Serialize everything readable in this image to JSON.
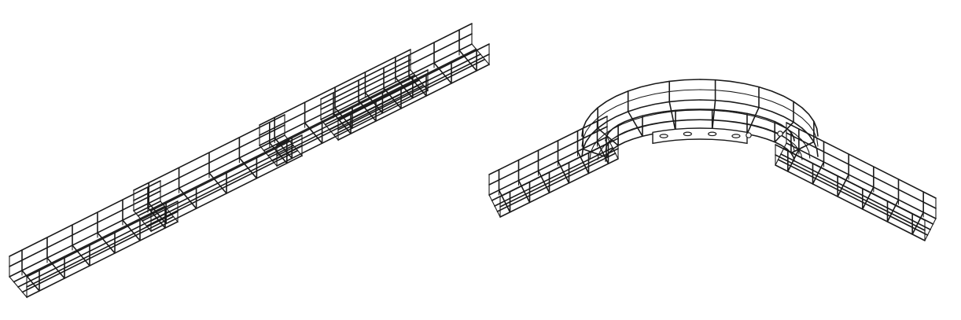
{
  "figures": [
    {
      "name": "straight-mesh-tray-run",
      "colors": {
        "stroke": "#1a1a1a",
        "background": "#ffffff"
      }
    },
    {
      "name": "wire-mesh-tray-bend-with-coupler",
      "colors": {
        "stroke": "#1a1a1a",
        "background": "#ffffff"
      }
    }
  ]
}
